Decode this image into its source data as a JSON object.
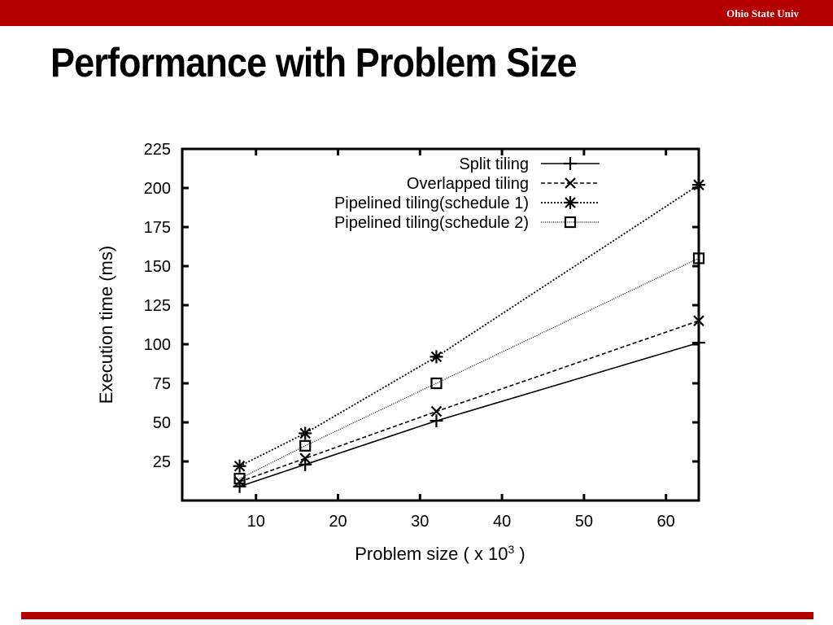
{
  "header": {
    "org": "Ohio State Univ"
  },
  "slide": {
    "title": "Performance with Problem Size"
  },
  "colors": {
    "accent": "#b50000",
    "line": "#000000"
  },
  "chart_data": {
    "type": "line",
    "title": "",
    "xlabel": "Problem size ( x 10",
    "xlabel_sup": "3",
    "xlabel_end": " )",
    "ylabel": "Execution time (ms)",
    "xlim": [
      1,
      64
    ],
    "ylim": [
      0,
      225
    ],
    "xticks": [
      10,
      20,
      30,
      40,
      50,
      60
    ],
    "yticks": [
      25,
      50,
      75,
      100,
      125,
      150,
      175,
      200,
      225
    ],
    "legend_position": "top-right",
    "grid": false,
    "x": [
      8,
      16,
      32,
      64
    ],
    "series": [
      {
        "name": "Split tiling",
        "values": [
          9,
          23,
          51,
          101
        ],
        "marker": "plus",
        "dash": "solid"
      },
      {
        "name": "Overlapped tiling",
        "values": [
          12,
          27,
          57,
          115
        ],
        "marker": "cross",
        "dash": "dashed"
      },
      {
        "name": "Pipelined tiling(schedule 1)",
        "values": [
          22,
          43,
          92,
          202
        ],
        "marker": "star",
        "dash": "dotted"
      },
      {
        "name": "Pipelined tiling(schedule 2)",
        "values": [
          14,
          35,
          75,
          155
        ],
        "marker": "square",
        "dash": "fine-dotted"
      }
    ]
  }
}
